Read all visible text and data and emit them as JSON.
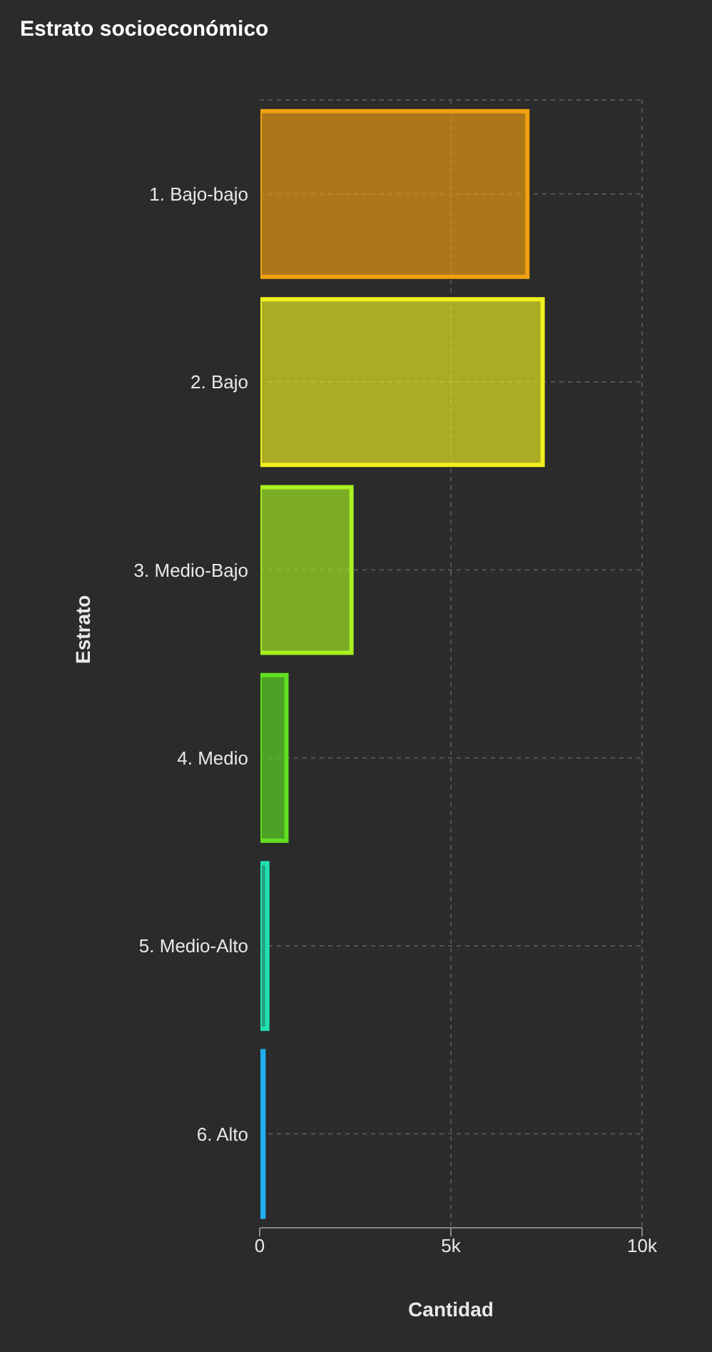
{
  "chart_data": {
    "type": "bar",
    "orientation": "horizontal",
    "title": "Estrato socioeconómico",
    "xlabel": "Cantidad",
    "ylabel": "Estrato",
    "categories": [
      "1. Bajo-bajo",
      "2. Bajo",
      "3. Medio-Bajo",
      "4. Medio",
      "5. Medio-Alto",
      "6. Alto"
    ],
    "values": [
      7000,
      7400,
      2400,
      700,
      200,
      100
    ],
    "colors": [
      "#f0a010",
      "#f0f020",
      "#a8f020",
      "#60e020",
      "#20e0b0",
      "#20b0f0"
    ],
    "xlim": [
      0,
      10000
    ],
    "xticks": [
      0,
      {
        "value": 5000,
        "label": "5k"
      },
      {
        "value": 10000,
        "label": "10k"
      }
    ],
    "grid": true,
    "legend": false
  }
}
